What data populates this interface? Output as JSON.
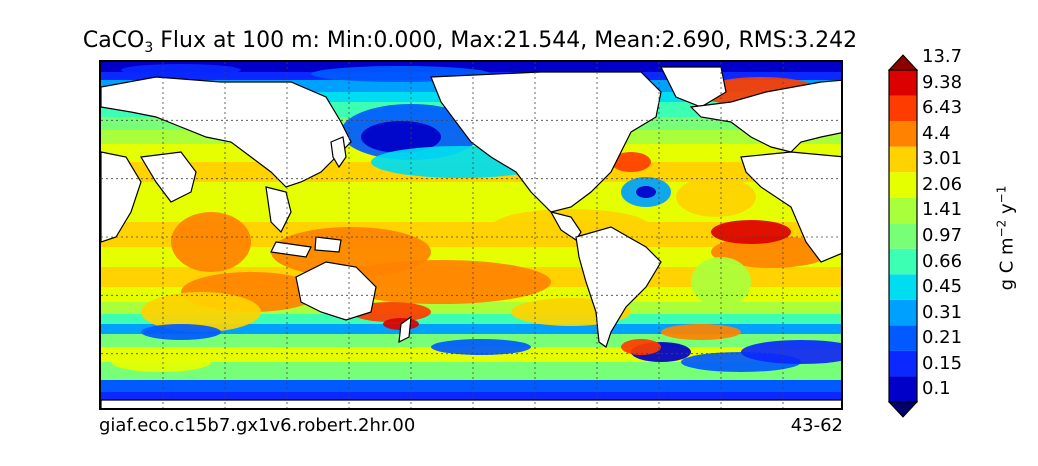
{
  "chart_data": {
    "type": "heatmap",
    "title": {
      "prefix": "CaCO",
      "subscript": "3",
      "rest": " Flux at 100 m: Min:0.000, Max:21.544, Mean:2.690, RMS:3.242"
    },
    "stats": {
      "min": 0.0,
      "max": 21.544,
      "mean": 2.69,
      "rms": 3.242
    },
    "colorbar": {
      "levels": [
        "0.1",
        "0.15",
        "0.21",
        "0.31",
        "0.45",
        "0.66",
        "0.97",
        "1.41",
        "2.06",
        "3.01",
        "4.4",
        "6.43",
        "9.38",
        "13.7"
      ],
      "colors": [
        "#00006e",
        "#0000c8",
        "#0a28ff",
        "#005aff",
        "#00a0ff",
        "#00dcf0",
        "#3cffb4",
        "#78ff78",
        "#aaff3c",
        "#e6ff00",
        "#ffd200",
        "#ff8200",
        "#ff3c00",
        "#dc0000",
        "#8c0000"
      ],
      "unit_label": {
        "base": "g C m",
        "exp1": "−2",
        "mid": " y",
        "exp2": "−1"
      },
      "extend": "both"
    },
    "map": {
      "projection": "longitude-latitude",
      "grid": true,
      "land_color": "#ffffff"
    }
  },
  "footer": {
    "case_name": "giaf.eco.c15b7.gx1v6.robert.2hr.00",
    "years": "43-62"
  }
}
